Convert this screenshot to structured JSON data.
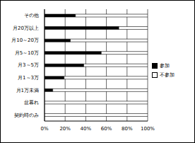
{
  "chart_data": {
    "type": "bar",
    "orientation": "horizontal",
    "stacked": true,
    "grid": true,
    "legend": "right",
    "categories": [
      "その他",
      "月20万以上",
      "月10～20万",
      "月5～10万",
      "月3～5万",
      "月1～3万",
      "月1万未満",
      "盆暮れ",
      "契約時のみ"
    ],
    "series": [
      {
        "name": "参加",
        "color": "#000000",
        "values": [
          30,
          72,
          25,
          55,
          38,
          19,
          8,
          0,
          0
        ]
      },
      {
        "name": "不参加",
        "color": "#ffffff",
        "values": [
          70,
          28,
          75,
          45,
          62,
          81,
          92,
          100,
          100
        ]
      }
    ],
    "xlim": [
      0,
      100
    ],
    "xticks": [
      {
        "value": 0,
        "label": "0%"
      },
      {
        "value": 20,
        "label": "20%"
      },
      {
        "value": 40,
        "label": "40%"
      },
      {
        "value": 60,
        "label": "60%"
      },
      {
        "value": 80,
        "label": "80%"
      },
      {
        "value": 100,
        "label": "100%"
      }
    ]
  }
}
